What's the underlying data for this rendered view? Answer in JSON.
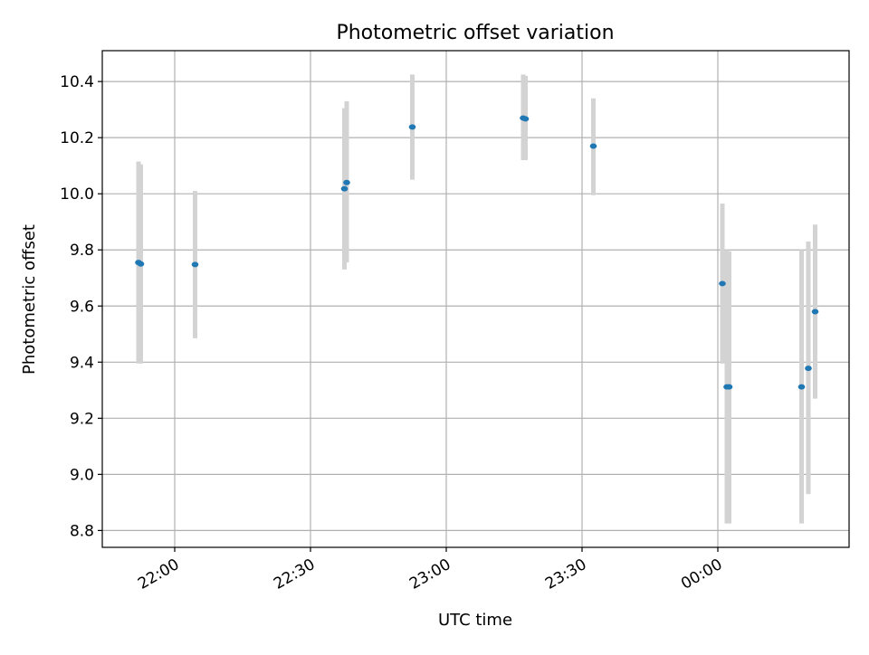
{
  "chart_data": {
    "type": "scatter",
    "title": "Photometric offset variation",
    "xlabel": "UTC time",
    "ylabel": "Photometric offset",
    "x_axis_type": "time",
    "xlim": [
      "21:44",
      "24:29"
    ],
    "ylim": [
      8.74,
      10.51
    ],
    "x_ticks": [
      {
        "label": "22:00",
        "time": "22:00"
      },
      {
        "label": "22:30",
        "time": "22:30"
      },
      {
        "label": "23:00",
        "time": "23:00"
      },
      {
        "label": "23:30",
        "time": "23:30"
      },
      {
        "label": "00:00",
        "time": "24:00"
      }
    ],
    "y_ticks": [
      "8.8",
      "9.0",
      "9.2",
      "9.4",
      "9.6",
      "9.8",
      "10.0",
      "10.2",
      "10.4"
    ],
    "grid": true,
    "marker_color": "#1f77b4",
    "errorbar_color": "#d3d3d3",
    "points": [
      {
        "time": "21:52",
        "y": 9.755,
        "ylow": 9.395,
        "yhigh": 10.115
      },
      {
        "time": "21:52.5",
        "y": 9.75,
        "ylow": 9.395,
        "yhigh": 10.105
      },
      {
        "time": "22:04.5",
        "y": 9.748,
        "ylow": 9.485,
        "yhigh": 10.01
      },
      {
        "time": "22:37.5",
        "y": 10.018,
        "ylow": 9.73,
        "yhigh": 10.305
      },
      {
        "time": "22:38",
        "y": 10.04,
        "ylow": 9.755,
        "yhigh": 10.33
      },
      {
        "time": "22:52.5",
        "y": 10.238,
        "ylow": 10.05,
        "yhigh": 10.425
      },
      {
        "time": "23:17",
        "y": 10.27,
        "ylow": 10.12,
        "yhigh": 10.425
      },
      {
        "time": "23:17.5",
        "y": 10.267,
        "ylow": 10.12,
        "yhigh": 10.42
      },
      {
        "time": "23:32.5",
        "y": 10.17,
        "ylow": 9.995,
        "yhigh": 10.34
      },
      {
        "time": "24:01",
        "y": 9.68,
        "ylow": 9.395,
        "yhigh": 9.965
      },
      {
        "time": "24:02",
        "y": 9.312,
        "ylow": 8.825,
        "yhigh": 9.8
      },
      {
        "time": "24:02.5",
        "y": 9.312,
        "ylow": 8.825,
        "yhigh": 9.795
      },
      {
        "time": "24:18.5",
        "y": 9.312,
        "ylow": 8.825,
        "yhigh": 9.8
      },
      {
        "time": "24:20",
        "y": 9.378,
        "ylow": 8.93,
        "yhigh": 9.83
      },
      {
        "time": "24:21.5",
        "y": 9.58,
        "ylow": 9.27,
        "yhigh": 9.89
      }
    ]
  }
}
